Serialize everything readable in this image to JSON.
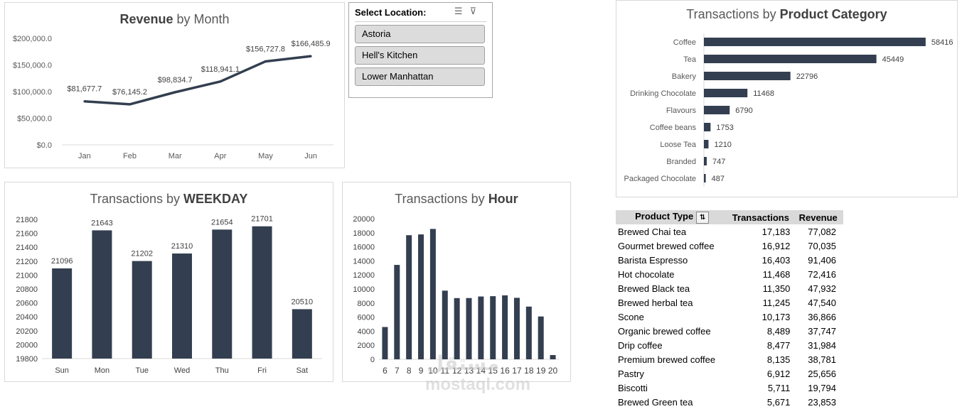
{
  "charts": {
    "revenue": {
      "title_bold": "Revenue",
      "title_rest": " by Month",
      "chart_data": {
        "type": "line",
        "categories": [
          "Jan",
          "Feb",
          "Mar",
          "Apr",
          "May",
          "Jun"
        ],
        "values": [
          81677.7,
          76145.2,
          98834.7,
          118941.1,
          156727.8,
          166485.9
        ],
        "labels": [
          "$81,677.7",
          "$76,145.2",
          "$98,834.7",
          "$118,941.1",
          "$156,727.8",
          "$166,485.9"
        ],
        "yticks": [
          "$0.0",
          "$50,000.0",
          "$100,000.0",
          "$150,000.0",
          "$200,000.0"
        ],
        "ylim": [
          0,
          200000
        ],
        "color": "#333f50"
      }
    },
    "weekday": {
      "title_rest": "Transactions by ",
      "title_bold": "WEEKDAY",
      "chart_data": {
        "type": "bar",
        "categories": [
          "Sun",
          "Mon",
          "Tue",
          "Wed",
          "Thu",
          "Fri",
          "Sat"
        ],
        "values": [
          21096,
          21643,
          21202,
          21310,
          21654,
          21701,
          20510
        ],
        "yticks": [
          "19800",
          "20000",
          "20200",
          "20400",
          "20600",
          "20800",
          "21000",
          "21200",
          "21400",
          "21600",
          "21800"
        ],
        "ylim": [
          19800,
          21800
        ],
        "color": "#333f50"
      }
    },
    "hour": {
      "title_rest": "Transactions by ",
      "title_bold": "Hour",
      "chart_data": {
        "type": "bar",
        "categories": [
          "6",
          "7",
          "8",
          "9",
          "10",
          "11",
          "12",
          "13",
          "14",
          "15",
          "16",
          "17",
          "18",
          "19",
          "20"
        ],
        "values": [
          4594,
          13428,
          17654,
          17764,
          18545,
          9766,
          8708,
          8714,
          8933,
          8979,
          9093,
          8745,
          7498,
          6092,
          603
        ],
        "yticks": [
          "0",
          "2000",
          "4000",
          "6000",
          "8000",
          "10000",
          "12000",
          "14000",
          "16000",
          "18000",
          "20000"
        ],
        "ylim": [
          0,
          20000
        ],
        "color": "#333f50"
      }
    },
    "category": {
      "title_rest": "Transactions by ",
      "title_bold": "Product Category",
      "chart_data": {
        "type": "bar",
        "orientation": "horizontal",
        "categories": [
          "Coffee",
          "Tea",
          "Bakery",
          "Drinking Chocolate",
          "Flavours",
          "Coffee beans",
          "Loose Tea",
          "Branded",
          "Packaged Chocolate"
        ],
        "values": [
          58416,
          45449,
          22796,
          11468,
          6790,
          1753,
          1210,
          747,
          487
        ],
        "xlim": [
          0,
          65000
        ],
        "color": "#333f50"
      }
    }
  },
  "slicer": {
    "header": "Select Location:",
    "icons": [
      "multi-select-icon",
      "clear-filter-icon"
    ],
    "items": [
      "Astoria",
      "Hell's Kitchen",
      "Lower Manhattan"
    ]
  },
  "pivot": {
    "headers": [
      "Product Type",
      "Transactions",
      "Revenue"
    ],
    "rows": [
      [
        "Brewed Chai tea",
        "17,183",
        "77,082"
      ],
      [
        "Gourmet brewed coffee",
        "16,912",
        "70,035"
      ],
      [
        "Barista Espresso",
        "16,403",
        "91,406"
      ],
      [
        "Hot chocolate",
        "11,468",
        "72,416"
      ],
      [
        "Brewed Black tea",
        "11,350",
        "47,932"
      ],
      [
        "Brewed herbal tea",
        "11,245",
        "47,540"
      ],
      [
        "Scone",
        "10,173",
        "36,866"
      ],
      [
        "Organic brewed coffee",
        "8,489",
        "37,747"
      ],
      [
        "Drip coffee",
        "8,477",
        "31,984"
      ],
      [
        "Premium brewed coffee",
        "8,135",
        "38,781"
      ],
      [
        "Pastry",
        "6,912",
        "25,656"
      ],
      [
        "Biscotti",
        "5,711",
        "19,794"
      ],
      [
        "Brewed Green tea",
        "5,671",
        "23,853"
      ]
    ]
  },
  "watermark": {
    "arabic": "مستقل",
    "latin": "mostaql.com"
  }
}
